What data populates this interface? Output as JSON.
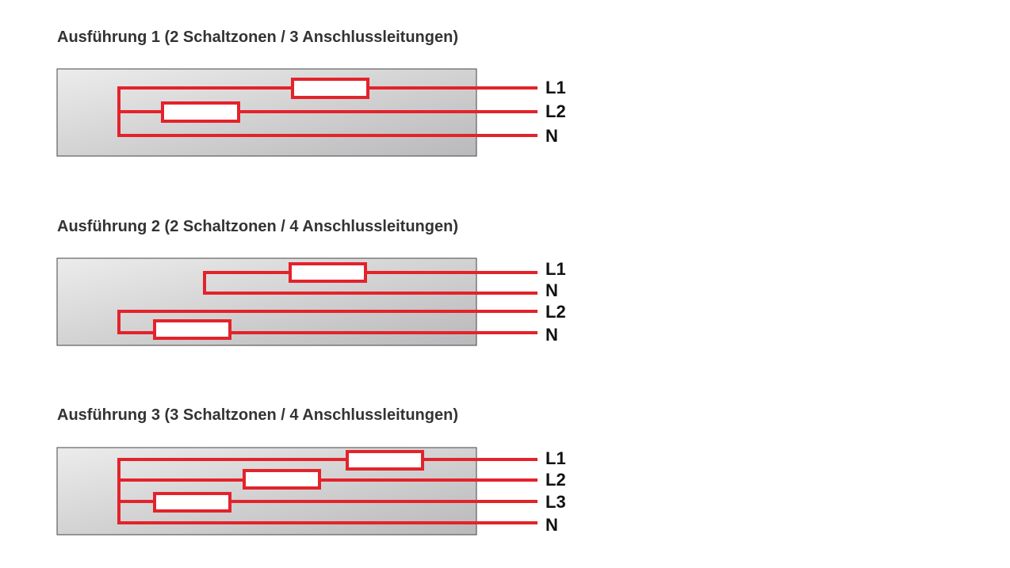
{
  "diagrams": [
    {
      "title": "Ausführung 1 (2 Schaltzonen / 3 Anschlussleitungen)",
      "terminals": [
        "L1",
        "L2",
        "N"
      ]
    },
    {
      "title": "Ausführung 2 (2 Schaltzonen / 4 Anschlussleitungen)",
      "terminals": [
        "L1",
        "N",
        "L2",
        "N"
      ]
    },
    {
      "title": "Ausführung 3 (3 Schaltzonen / 4 Anschlussleitungen)",
      "terminals": [
        "L1",
        "L2",
        "L3",
        "N"
      ]
    }
  ]
}
